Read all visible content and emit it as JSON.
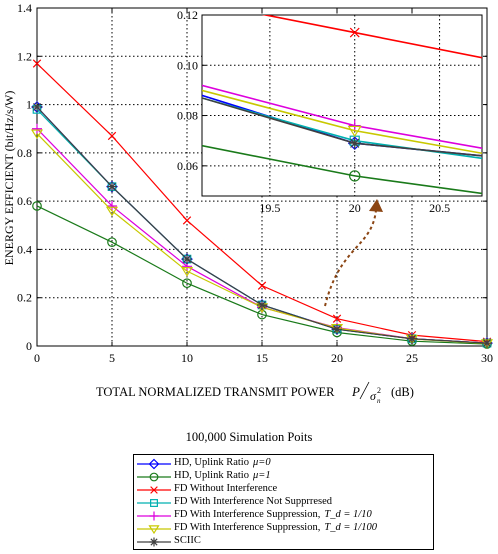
{
  "chart_data": {
    "type": "line",
    "title": "",
    "xlabel": "TOTAL NORMALIZED TRANSMIT POWER",
    "xlabel_unit": "(dB)",
    "xlabel_math_base": "P",
    "xlabel_math_den": "σ",
    "xlabel_math_sup": "2",
    "xlabel_math_sub": "n",
    "ylabel": "ENERGY EFFICIENT (bit/Hz/s/W)",
    "xlim": [
      0,
      30
    ],
    "ylim": [
      0,
      1.4
    ],
    "xticks": [
      "0",
      "5",
      "10",
      "15",
      "20",
      "25",
      "30"
    ],
    "yticks": [
      "0",
      "0.2",
      "0.4",
      "0.6",
      "0.8",
      "1",
      "1.2",
      "1.4"
    ],
    "grid": true,
    "x": [
      0,
      5,
      10,
      15,
      20,
      25,
      30
    ],
    "series": [
      {
        "name": "HD, Uplink Ratio",
        "name_math": "μ=0",
        "color": "#0000ff",
        "marker": "diamond",
        "values": [
          0.99,
          0.66,
          0.36,
          0.17,
          0.07,
          0.03,
          0.012
        ]
      },
      {
        "name": "HD, Uplink Ratio",
        "name_math": "μ=1",
        "color": "#1a7a1a",
        "marker": "circle",
        "values": [
          0.58,
          0.43,
          0.26,
          0.13,
          0.056,
          0.02,
          0.008
        ]
      },
      {
        "name": "FD Without Interference",
        "color": "#ff0000",
        "marker": "x",
        "values": [
          1.17,
          0.87,
          0.52,
          0.25,
          0.113,
          0.045,
          0.018
        ]
      },
      {
        "name": "FD With Interference Not Supprresed",
        "color": "#00b0b0",
        "marker": "square",
        "values": [
          0.98,
          0.66,
          0.36,
          0.17,
          0.07,
          0.03,
          0.012
        ]
      },
      {
        "name": "FD With Interference Suppression,",
        "name_math": "T_d = 1/10",
        "color": "#dd00dd",
        "marker": "plus",
        "values": [
          0.9,
          0.58,
          0.33,
          0.16,
          0.076,
          0.03,
          0.012
        ]
      },
      {
        "name": "FD With Interference Suppression,",
        "name_math": "T_d = 1/100",
        "color": "#c8c800",
        "marker": "triangle-down",
        "values": [
          0.88,
          0.56,
          0.31,
          0.16,
          0.074,
          0.029,
          0.011
        ]
      },
      {
        "name": "SCIIC",
        "color": "#404040",
        "marker": "asterisk",
        "values": [
          0.99,
          0.66,
          0.36,
          0.17,
          0.069,
          0.03,
          0.012
        ]
      }
    ],
    "inset": {
      "xlim": [
        19.1,
        20.75
      ],
      "ylim": [
        0.048,
        0.12
      ],
      "xticks": [
        "19.5",
        "20",
        "20.5"
      ],
      "yticks": [
        "0.06",
        "0.08",
        "0.10",
        "0.12"
      ],
      "points_x": [
        19.1,
        20,
        20.75
      ],
      "series_values": [
        [
          0.088,
          0.069,
          0.064
        ],
        [
          0.068,
          0.056,
          0.049
        ],
        [
          0.125,
          0.113,
          0.103
        ],
        [
          0.087,
          0.07,
          0.063
        ],
        [
          0.092,
          0.076,
          0.067
        ],
        [
          0.09,
          0.074,
          0.065
        ],
        [
          0.087,
          0.069,
          0.064
        ]
      ]
    },
    "annotation": "100,000 Simulation Poits",
    "legend_placement": "bottom"
  }
}
